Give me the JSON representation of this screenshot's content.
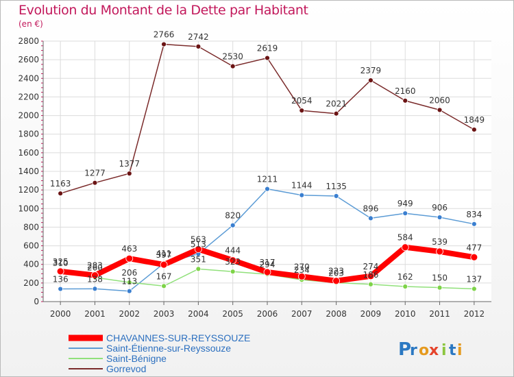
{
  "title": "Evolution du Montant de la Dette par Habitant",
  "unit": "(en €)",
  "logo": {
    "text": "Proxiti",
    "letters": [
      "P",
      "r",
      "o",
      "x",
      "i",
      "t",
      "i"
    ],
    "colors": [
      "#2b78c2",
      "#2b78c2",
      "#e59a1f",
      "#e5432b",
      "#8cc63f",
      "#2b78c2",
      "#e59a1f"
    ]
  },
  "chart_data": {
    "type": "line",
    "x": [
      "2000",
      "2001",
      "2002",
      "2003",
      "2004",
      "2005",
      "2006",
      "2007",
      "2008",
      "2009",
      "2010",
      "2011",
      "2012"
    ],
    "ylim": [
      0,
      2800
    ],
    "yticks": [
      0,
      200,
      400,
      600,
      800,
      1000,
      1200,
      1400,
      1600,
      1800,
      2000,
      2200,
      2400,
      2600,
      2800
    ],
    "grid": true,
    "legend_position": "bottom-left",
    "series": [
      {
        "name": "CHAVANNES-SUR-REYSSOUZE",
        "color": "#ff0000",
        "marker": "#ff0000",
        "width": 8,
        "values": [
          325,
          283,
          463,
          397,
          563,
          444,
          317,
          270,
          223,
          274,
          584,
          539,
          477
        ]
      },
      {
        "name": "Saint-Étienne-sur-Reyssouze",
        "color": "#5b9bd5",
        "marker": "#3a7fd0",
        "width": 1.5,
        "values": [
          136,
          138,
          113,
          411,
          513,
          820,
          1211,
          1144,
          1135,
          896,
          949,
          906,
          834
        ]
      },
      {
        "name": "Saint-Bénigne",
        "color": "#90e07a",
        "marker": "#7ed348",
        "width": 1.5,
        "values": [
          310,
          260,
          206,
          167,
          351,
          323,
          294,
          234,
          203,
          186,
          162,
          150,
          137
        ]
      },
      {
        "name": "Gorrevod",
        "color": "#7a2a2a",
        "marker": "#6b1414",
        "width": 1.5,
        "values": [
          1163,
          1277,
          1377,
          2766,
          2742,
          2530,
          2619,
          2054,
          2021,
          2379,
          2160,
          2060,
          1849
        ]
      }
    ]
  }
}
